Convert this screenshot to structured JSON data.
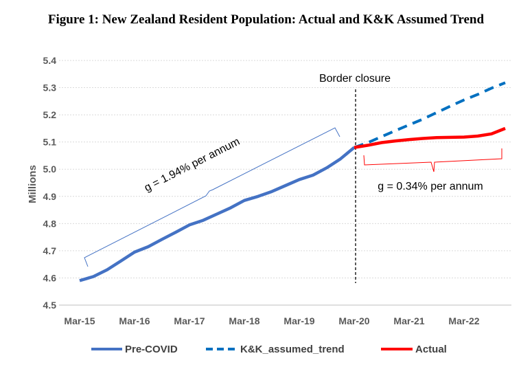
{
  "chart_data": {
    "type": "line",
    "title": "Figure 1: New Zealand Resident Population: Actual and K&K Assumed Trend",
    "xlabel": "",
    "ylabel": "Millions",
    "ylim": [
      4.5,
      5.4
    ],
    "yticks": [
      "4.5",
      "4.6",
      "4.7",
      "4.8",
      "4.9",
      "5.0",
      "5.1",
      "5.2",
      "5.3",
      "5.4"
    ],
    "xticks": [
      "Mar-15",
      "Mar-16",
      "Mar-17",
      "Mar-18",
      "Mar-19",
      "Mar-20",
      "Mar-21",
      "Mar-22"
    ],
    "x_frequency": "quarterly, Mar-15 to Dec-22",
    "grid": "horizontal dotted",
    "legend": "bottom",
    "series": [
      {
        "name": "Pre-COVID",
        "color": "#4472C4",
        "style": "solid",
        "start_quarter": 0,
        "values": [
          4.59,
          4.605,
          4.63,
          4.662,
          4.695,
          4.715,
          4.742,
          4.768,
          4.795,
          4.812,
          4.835,
          4.858,
          4.885,
          4.9,
          4.918,
          4.94,
          4.962,
          4.978,
          5.005,
          5.038,
          5.08
        ]
      },
      {
        "name": "K&K_assumed_trend",
        "color": "#0070C0",
        "style": "dashed",
        "start_quarter": 20,
        "values": [
          5.08,
          5.098,
          5.12,
          5.142,
          5.163,
          5.184,
          5.208,
          5.232,
          5.255,
          5.275,
          5.298,
          5.318
        ]
      },
      {
        "name": "Actual",
        "color": "#FF0000",
        "style": "solid",
        "start_quarter": 20,
        "values": [
          5.08,
          5.088,
          5.098,
          5.104,
          5.109,
          5.113,
          5.116,
          5.117,
          5.118,
          5.122,
          5.13,
          5.15
        ]
      }
    ],
    "annotations": {
      "border": "Border closure",
      "pre_growth": "g = 1.94% per annum",
      "post_growth": "g = 0.34% per annum"
    }
  }
}
